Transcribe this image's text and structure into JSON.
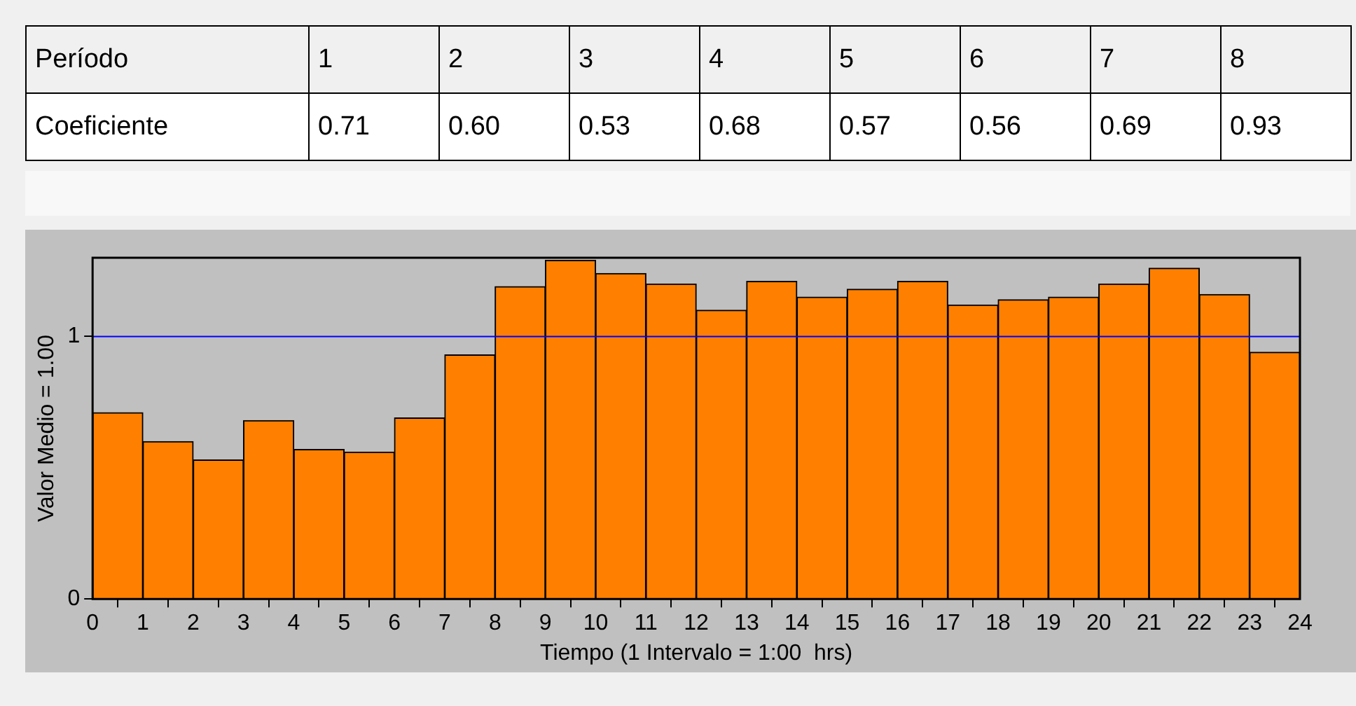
{
  "chart_data": {
    "type": "histogram",
    "xlabel": "Tiempo (1 Intervalo = 1:00  hrs)",
    "ylabel": "Valor Medio = 1.00",
    "color": "#ff8000",
    "bins": [
      0,
      1,
      2,
      3,
      4,
      5,
      6,
      7,
      8,
      9,
      10,
      11,
      12,
      13,
      14,
      15,
      16,
      17,
      18,
      19,
      20,
      21,
      22,
      23,
      24
    ],
    "values": [
      0.71,
      0.6,
      0.53,
      0.68,
      0.57,
      0.56,
      0.69,
      0.93,
      1.19,
      1.29,
      1.24,
      1.2,
      1.1,
      1.21,
      1.15,
      1.18,
      1.21,
      1.12,
      1.14,
      1.15,
      1.2,
      1.26,
      1.16,
      0.94
    ],
    "xlim": [
      0,
      24
    ],
    "xticks": [
      0,
      1,
      2,
      3,
      4,
      5,
      6,
      7,
      8,
      9,
      10,
      11,
      12,
      13,
      14,
      15,
      16,
      17,
      18,
      19,
      20,
      21,
      22,
      23,
      24
    ],
    "ylim": [
      0,
      1.3
    ],
    "yticks": [
      0,
      1
    ],
    "ref_lines": [
      {
        "axis": "y",
        "value": 1,
        "color": "#0000ff"
      }
    ],
    "annotations": [
      "Período",
      "Coeficiente",
      "1",
      "2",
      "3",
      "4",
      "5",
      "6",
      "7",
      "8",
      "0.71",
      "0.60",
      "0.53",
      "0.68",
      "0.57",
      "0.56",
      "0.69",
      "0.93"
    ]
  }
}
